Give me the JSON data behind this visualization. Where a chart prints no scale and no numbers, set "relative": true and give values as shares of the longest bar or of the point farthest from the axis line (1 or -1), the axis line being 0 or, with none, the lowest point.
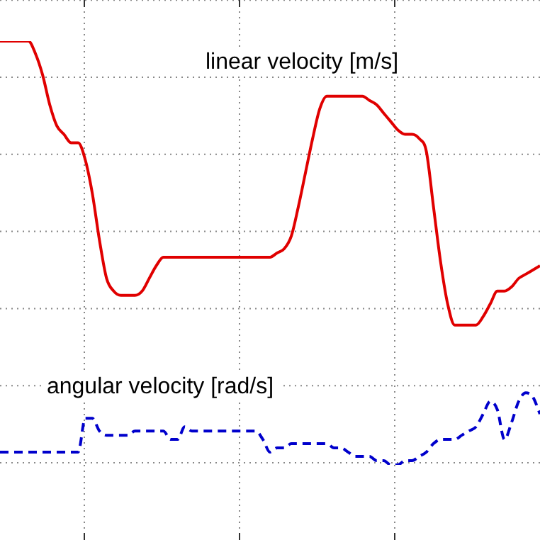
{
  "chart_data": {
    "type": "line",
    "relative": true,
    "grid": true,
    "legend": false,
    "categories": [
      null,
      null,
      null,
      null,
      null,
      null,
      null,
      null,
      null,
      null,
      null,
      null,
      null,
      null,
      null,
      null,
      null,
      null,
      null,
      null,
      null,
      null,
      null,
      null,
      null,
      null,
      null,
      null,
      null,
      null,
      null,
      null,
      null,
      null,
      null,
      null,
      null,
      null,
      null,
      null,
      null,
      null,
      null,
      null,
      null,
      null,
      null,
      null,
      null,
      null,
      null,
      null,
      null,
      null,
      null,
      null,
      null,
      null,
      null,
      null,
      null,
      null,
      null,
      null,
      null,
      null,
      null,
      null,
      null,
      null,
      null,
      null,
      null,
      null,
      null,
      null,
      null
    ],
    "series": [
      {
        "name": "linear velocity [m/s]",
        "color": "#e00000",
        "line_style": "solid",
        "values": [
          1.0,
          1.0,
          1.0,
          1.0,
          1.0,
          0.97,
          0.92,
          0.85,
          0.8,
          0.78,
          0.76,
          0.76,
          0.72,
          0.64,
          0.53,
          0.44,
          0.41,
          0.4,
          0.4,
          0.4,
          0.41,
          0.44,
          0.47,
          0.49,
          0.49,
          0.49,
          0.49,
          0.49,
          0.49,
          0.49,
          0.49,
          0.49,
          0.49,
          0.49,
          0.49,
          0.49,
          0.49,
          0.49,
          0.49,
          0.5,
          0.51,
          0.54,
          0.61,
          0.69,
          0.77,
          0.84,
          0.87,
          0.87,
          0.87,
          0.87,
          0.87,
          0.87,
          0.86,
          0.85,
          0.83,
          0.81,
          0.79,
          0.78,
          0.78,
          0.77,
          0.74,
          0.61,
          0.48,
          0.38,
          0.33,
          0.33,
          0.33,
          0.33,
          0.35,
          0.38,
          0.41,
          0.41,
          0.42,
          0.44,
          0.45,
          0.46,
          0.47
        ]
      },
      {
        "name": "angular velocity [rad/s]",
        "color": "#0000cc",
        "line_style": "dashed",
        "values": [
          0.03,
          0.03,
          0.03,
          0.03,
          0.03,
          0.03,
          0.03,
          0.03,
          0.03,
          0.03,
          0.03,
          0.03,
          0.11,
          0.11,
          0.08,
          0.07,
          0.07,
          0.07,
          0.07,
          0.08,
          0.08,
          0.08,
          0.08,
          0.08,
          0.06,
          0.06,
          0.09,
          0.08,
          0.08,
          0.08,
          0.08,
          0.08,
          0.08,
          0.08,
          0.08,
          0.08,
          0.08,
          0.06,
          0.03,
          0.04,
          0.04,
          0.05,
          0.05,
          0.05,
          0.05,
          0.05,
          0.05,
          0.04,
          0.04,
          0.03,
          0.02,
          0.02,
          0.02,
          0.01,
          0.01,
          0,
          0,
          0.01,
          0.01,
          0.02,
          0.03,
          0.05,
          0.06,
          0.06,
          0.06,
          0.07,
          0.08,
          0.09,
          0.12,
          0.15,
          0.13,
          0.06,
          0.1,
          0.15,
          0.17,
          0.16,
          0.12
        ]
      }
    ]
  }
}
